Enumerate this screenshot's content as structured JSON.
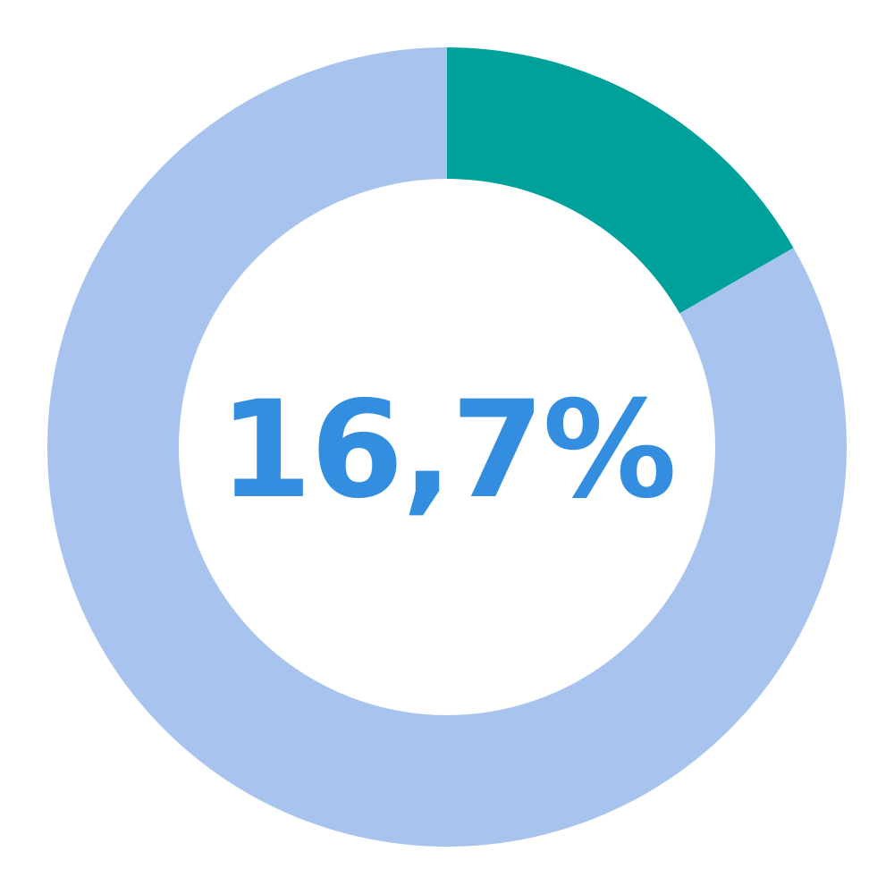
{
  "chart_data": {
    "type": "pie",
    "slices": [
      {
        "value": 16.7,
        "color": "#00a19a"
      },
      {
        "value": 83.3,
        "color": "#a8c4ee"
      }
    ],
    "center_label": "16,7%",
    "center_label_color": "#348ee0",
    "title": "",
    "legend": "none"
  }
}
